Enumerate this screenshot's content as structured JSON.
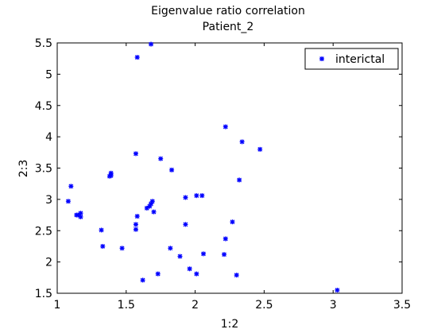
{
  "chart_data": {
    "type": "scatter",
    "title": "Eigenvalue ratio correlation",
    "subtitle": "Patient_2",
    "xlabel": "1:2",
    "ylabel": "2:3",
    "xlim": [
      1,
      3.5
    ],
    "ylim": [
      1.5,
      5.5
    ],
    "xticks": [
      "1",
      "1.5",
      "2",
      "2.5",
      "3",
      "3.5"
    ],
    "yticks": [
      "1.5",
      "2",
      "2.5",
      "3",
      "3.5",
      "4",
      "4.5",
      "5",
      "5.5"
    ],
    "xtick_values": [
      1,
      1.5,
      2,
      2.5,
      3,
      3.5
    ],
    "ytick_values": [
      1.5,
      2,
      2.5,
      3,
      3.5,
      4,
      4.5,
      5,
      5.5
    ],
    "legend_position": "top-right",
    "grid": false,
    "series": [
      {
        "name": "interictal",
        "color": "#0000ff",
        "marker": "asterisk",
        "points": [
          [
            1.58,
            5.27
          ],
          [
            1.68,
            5.48
          ],
          [
            2.22,
            4.16
          ],
          [
            2.34,
            3.92
          ],
          [
            2.47,
            3.8
          ],
          [
            1.57,
            3.73
          ],
          [
            1.75,
            3.65
          ],
          [
            1.83,
            3.47
          ],
          [
            1.39,
            3.42
          ],
          [
            1.38,
            3.37
          ],
          [
            1.39,
            3.38
          ],
          [
            2.32,
            3.31
          ],
          [
            1.1,
            3.21
          ],
          [
            2.01,
            3.06
          ],
          [
            2.05,
            3.06
          ],
          [
            1.93,
            3.03
          ],
          [
            1.69,
            2.97
          ],
          [
            1.68,
            2.93
          ],
          [
            1.67,
            2.89
          ],
          [
            1.65,
            2.86
          ],
          [
            1.7,
            2.8
          ],
          [
            1.08,
            2.97
          ],
          [
            1.17,
            2.78
          ],
          [
            1.15,
            2.75
          ],
          [
            1.17,
            2.72
          ],
          [
            1.14,
            2.75
          ],
          [
            1.58,
            2.73
          ],
          [
            1.57,
            2.6
          ],
          [
            1.93,
            2.6
          ],
          [
            1.57,
            2.52
          ],
          [
            1.32,
            2.51
          ],
          [
            2.27,
            2.64
          ],
          [
            2.22,
            2.37
          ],
          [
            1.33,
            2.25
          ],
          [
            1.47,
            2.22
          ],
          [
            1.82,
            2.22
          ],
          [
            2.06,
            2.13
          ],
          [
            2.21,
            2.12
          ],
          [
            1.89,
            2.09
          ],
          [
            1.96,
            1.89
          ],
          [
            2.01,
            1.81
          ],
          [
            1.73,
            1.81
          ],
          [
            2.3,
            1.79
          ],
          [
            1.62,
            1.71
          ],
          [
            3.03,
            1.55
          ]
        ]
      }
    ]
  }
}
